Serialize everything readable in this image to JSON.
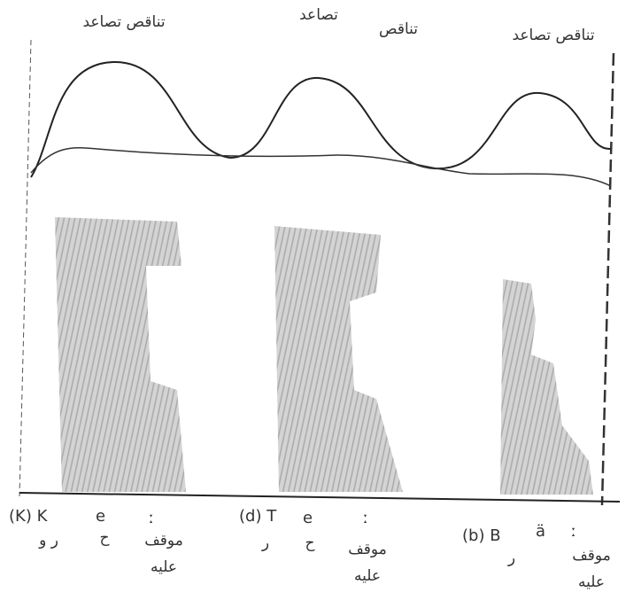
{
  "top_labels": [
    "تناقص تصاعد",
    "تصاعد",
    "تناقص",
    "تناقص تصاعد"
  ],
  "segments": [
    {
      "symbols": [
        "(K) K",
        "e",
        "ː"
      ],
      "arabic": [
        "ر و",
        "ح"
      ],
      "note": [
        "موقف",
        "عليه"
      ]
    },
    {
      "symbols": [
        "(d) T",
        "e",
        "ː"
      ],
      "arabic": [
        "ر",
        "ح"
      ],
      "note": [
        "موقف",
        "عليه"
      ]
    },
    {
      "symbols": [
        "(b) B",
        "ä",
        "ː"
      ],
      "arabic": [
        "ر"
      ],
      "note": [
        "موقف",
        "عليه"
      ]
    }
  ]
}
